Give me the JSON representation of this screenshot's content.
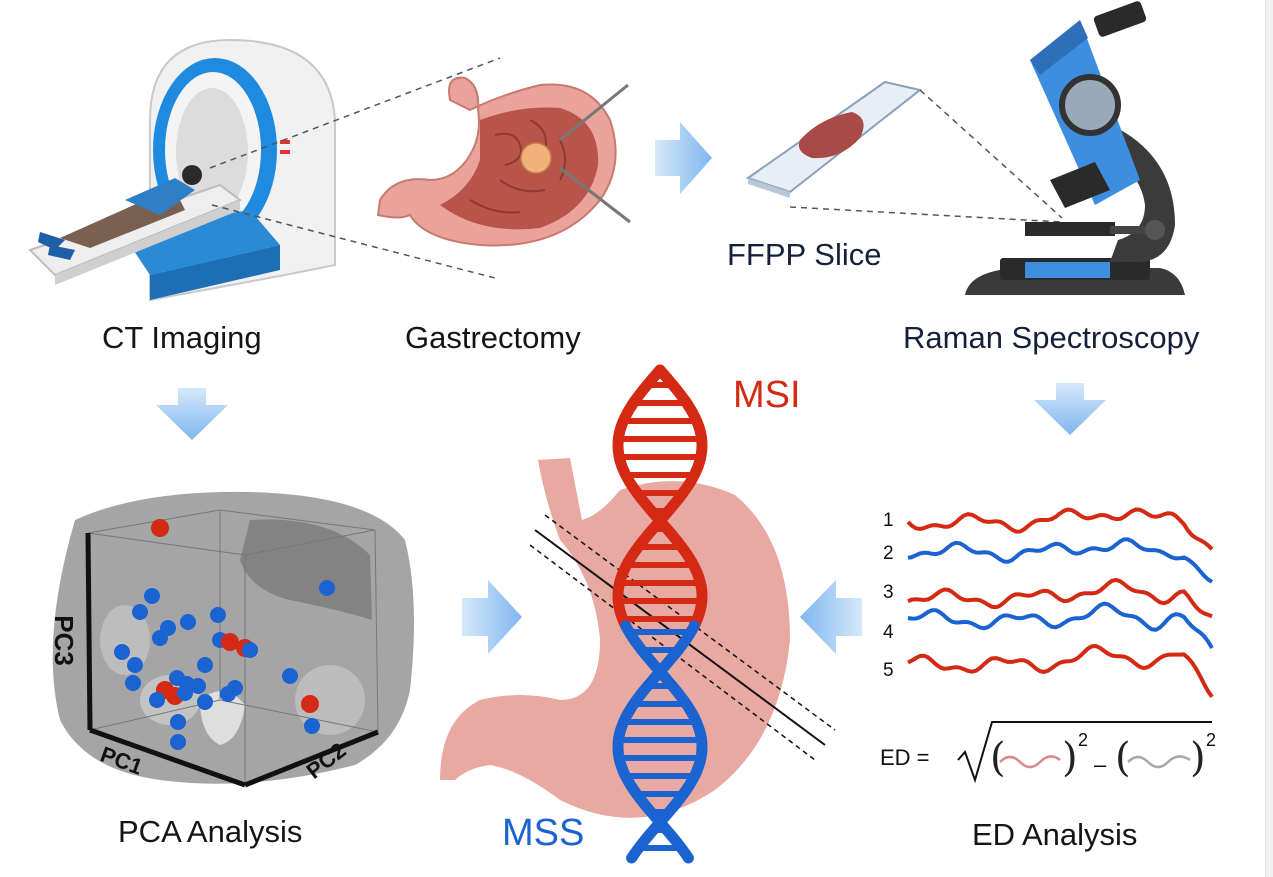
{
  "labels": {
    "ct_imaging": "CT Imaging",
    "gastrectomy": "Gastrectomy",
    "ffpp_slice": "FFPP Slice",
    "raman_spectroscopy": "Raman Spectroscopy",
    "pca_analysis": "PCA  Analysis",
    "ed_analysis": "ED Analysis",
    "msi": "MSI",
    "mss": "MSS"
  },
  "pca_axes": {
    "pc1": "PC1",
    "pc2": "PC2",
    "pc3": "PC3"
  },
  "spectra_numbers": [
    "1",
    "2",
    "3",
    "4",
    "5"
  ],
  "equation": {
    "lhs": "ED =",
    "exp1": "2",
    "exp2": "2",
    "minus": "–"
  },
  "colors": {
    "red": "#d42a14",
    "blue": "#1a63d0",
    "arrow": "#8cc0f0",
    "stomach": "#e6a9a1",
    "ct_gray": "#a9a9a9"
  },
  "icons": [
    "ct-scanner-icon",
    "stomach-icon",
    "glass-slide-icon",
    "microscope-icon",
    "dna-helix-icon"
  ]
}
